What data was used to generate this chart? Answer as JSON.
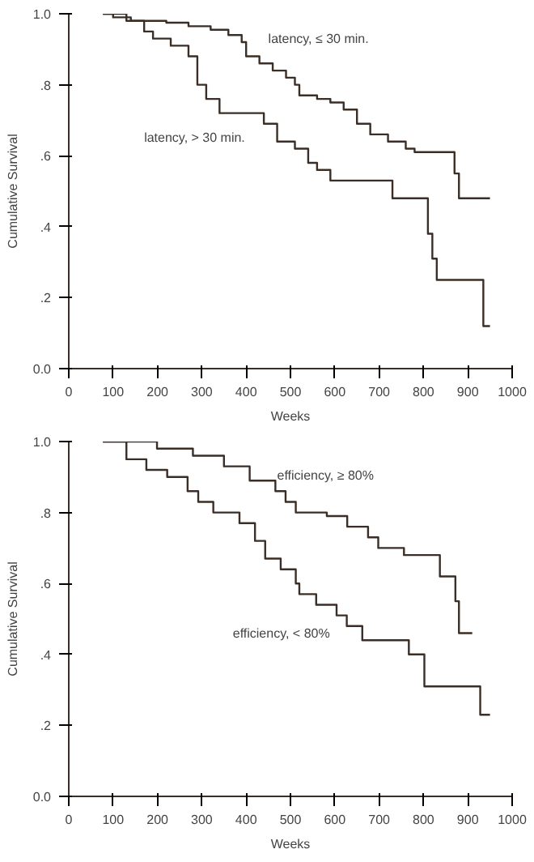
{
  "chart_data": [
    {
      "type": "step",
      "xlabel": "Weeks",
      "ylabel": "Cumulative Survival",
      "xlim": [
        0,
        1000
      ],
      "ylim": [
        0,
        1
      ],
      "xticks": [
        0,
        100,
        200,
        300,
        400,
        500,
        600,
        700,
        800,
        900,
        1000
      ],
      "yticks": [
        {
          "value": 0,
          "label": "0.0"
        },
        {
          "value": 0.2,
          "label": ".2"
        },
        {
          "value": 0.4,
          "label": ".4"
        },
        {
          "value": 0.6,
          "label": ".6"
        },
        {
          "value": 0.8,
          "label": ".8"
        },
        {
          "value": 1,
          "label": "1.0"
        }
      ],
      "grid": false,
      "series": [
        {
          "color": "#3a2e26",
          "x": [
            77,
            100,
            140,
            220,
            270,
            320,
            360,
            390,
            400,
            430,
            460,
            490,
            510,
            520,
            560,
            590,
            620,
            650,
            680,
            720,
            760,
            780,
            860,
            870,
            880,
            950
          ],
          "values": [
            1.0,
            0.99,
            0.98,
            0.975,
            0.965,
            0.955,
            0.94,
            0.92,
            0.88,
            0.86,
            0.84,
            0.82,
            0.8,
            0.77,
            0.76,
            0.75,
            0.73,
            0.69,
            0.66,
            0.64,
            0.62,
            0.61,
            0.61,
            0.55,
            0.48,
            0.48
          ]
        },
        {
          "color": "#3a2e26",
          "x": [
            77,
            130,
            170,
            190,
            230,
            270,
            290,
            310,
            340,
            420,
            440,
            470,
            510,
            540,
            560,
            590,
            700,
            730,
            800,
            810,
            820,
            830,
            930,
            935,
            950
          ],
          "values": [
            1.0,
            0.98,
            0.95,
            0.93,
            0.91,
            0.88,
            0.8,
            0.76,
            0.72,
            0.72,
            0.69,
            0.64,
            0.62,
            0.58,
            0.56,
            0.53,
            0.53,
            0.48,
            0.48,
            0.38,
            0.31,
            0.25,
            0.25,
            0.12,
            0.12
          ]
        }
      ],
      "annotations": [
        "latency, ≤ 30 min.",
        "latency, > 30 min."
      ]
    },
    {
      "type": "step",
      "xlabel": "Weeks",
      "ylabel": "Cumulative Survival",
      "xlim": [
        0,
        1000
      ],
      "ylim": [
        0,
        1
      ],
      "xticks": [
        0,
        100,
        200,
        300,
        400,
        500,
        600,
        700,
        800,
        900,
        1000
      ],
      "yticks": [
        {
          "value": 0,
          "label": "0.0"
        },
        {
          "value": 0.2,
          "label": ".2"
        },
        {
          "value": 0.4,
          "label": ".4"
        },
        {
          "value": 0.6,
          "label": ".6"
        },
        {
          "value": 0.8,
          "label": ".8"
        },
        {
          "value": 1,
          "label": "1.0"
        }
      ],
      "grid": false,
      "series": [
        {
          "color": "#3a2e26",
          "x": [
            77,
            199,
            280,
            350,
            408,
            466,
            489,
            512,
            582,
            628,
            675,
            698,
            756,
            814,
            837,
            872,
            880,
            910
          ],
          "values": [
            1.0,
            0.98,
            0.96,
            0.93,
            0.89,
            0.86,
            0.83,
            0.8,
            0.79,
            0.76,
            0.73,
            0.7,
            0.68,
            0.68,
            0.62,
            0.55,
            0.46,
            0.46
          ]
        },
        {
          "color": "#3a2e26",
          "x": [
            77,
            130,
            175,
            222,
            268,
            292,
            326,
            385,
            420,
            443,
            478,
            512,
            520,
            558,
            604,
            627,
            662,
            767,
            802,
            928,
            950
          ],
          "values": [
            1.0,
            0.95,
            0.92,
            0.9,
            0.86,
            0.83,
            0.8,
            0.77,
            0.72,
            0.67,
            0.64,
            0.6,
            0.57,
            0.54,
            0.51,
            0.48,
            0.44,
            0.4,
            0.31,
            0.23,
            0.23
          ]
        }
      ],
      "annotations": [
        "efficiency, ≥ 80%",
        "efficiency, < 80%"
      ]
    }
  ]
}
